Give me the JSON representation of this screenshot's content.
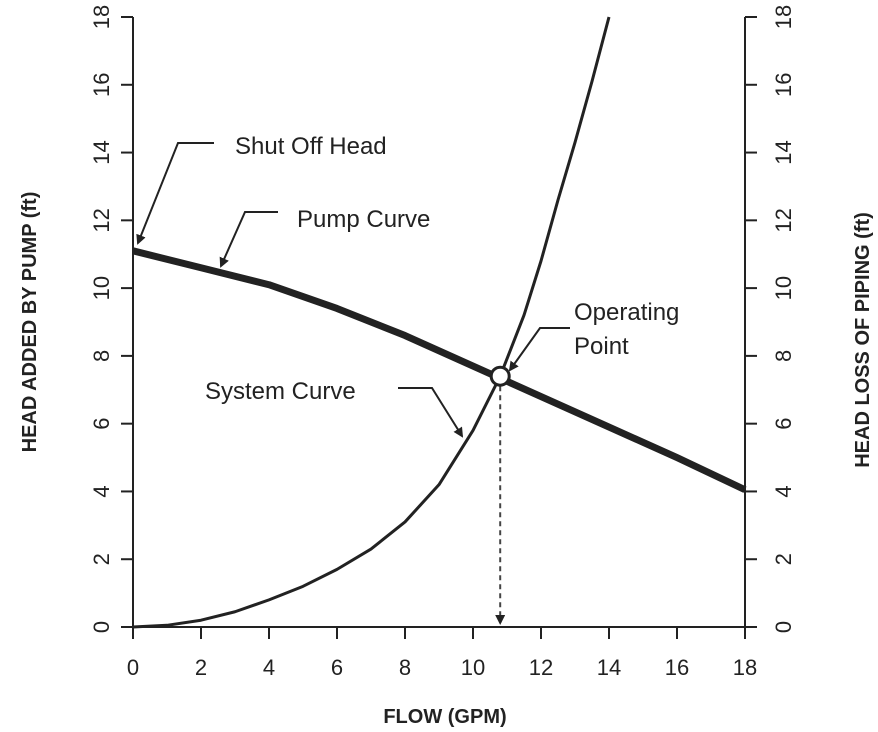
{
  "chart_data": {
    "type": "line",
    "xlabel": "FLOW (GPM)",
    "ylabel": "HEAD ADDED BY PUMP (ft)",
    "y2label": "HEAD LOSS OF PIPING (ft)",
    "xlim": [
      0,
      18
    ],
    "xticks": [
      0,
      2,
      4,
      6,
      8,
      10,
      12,
      14,
      16,
      18
    ],
    "ylim": [
      0,
      18
    ],
    "yticks": [
      0,
      2,
      4,
      6,
      8,
      10,
      12,
      14,
      16,
      18
    ],
    "y2lim": [
      0,
      18
    ],
    "y2ticks": [
      0,
      2,
      4,
      6,
      8,
      10,
      12,
      14,
      16,
      18
    ],
    "series": [
      {
        "name": "Pump Curve",
        "color": "#222222",
        "x": [
          0,
          2,
          4,
          6,
          8,
          10,
          12,
          14,
          16,
          18
        ],
        "values": [
          11.1,
          10.6,
          10.1,
          9.4,
          8.6,
          7.7,
          6.8,
          5.9,
          5.0,
          4.05
        ]
      },
      {
        "name": "System Curve",
        "color": "#222222",
        "axis": "y2",
        "x": [
          0,
          1,
          2,
          3,
          4,
          5,
          6,
          7,
          8,
          9,
          10,
          10.8,
          11.5,
          12,
          12.5,
          13,
          13.5,
          14
        ],
        "values": [
          0,
          0.05,
          0.2,
          0.45,
          0.8,
          1.2,
          1.7,
          2.3,
          3.1,
          4.2,
          5.8,
          7.4,
          9.2,
          10.8,
          12.6,
          14.3,
          16.1,
          18
        ]
      }
    ],
    "operating_point": {
      "x": 10.8,
      "y": 7.4
    },
    "annotations": {
      "shut_off": "Shut Off Head",
      "pump": "Pump Curve",
      "operating": [
        "Operating",
        "Point"
      ],
      "system": "System Curve"
    }
  }
}
